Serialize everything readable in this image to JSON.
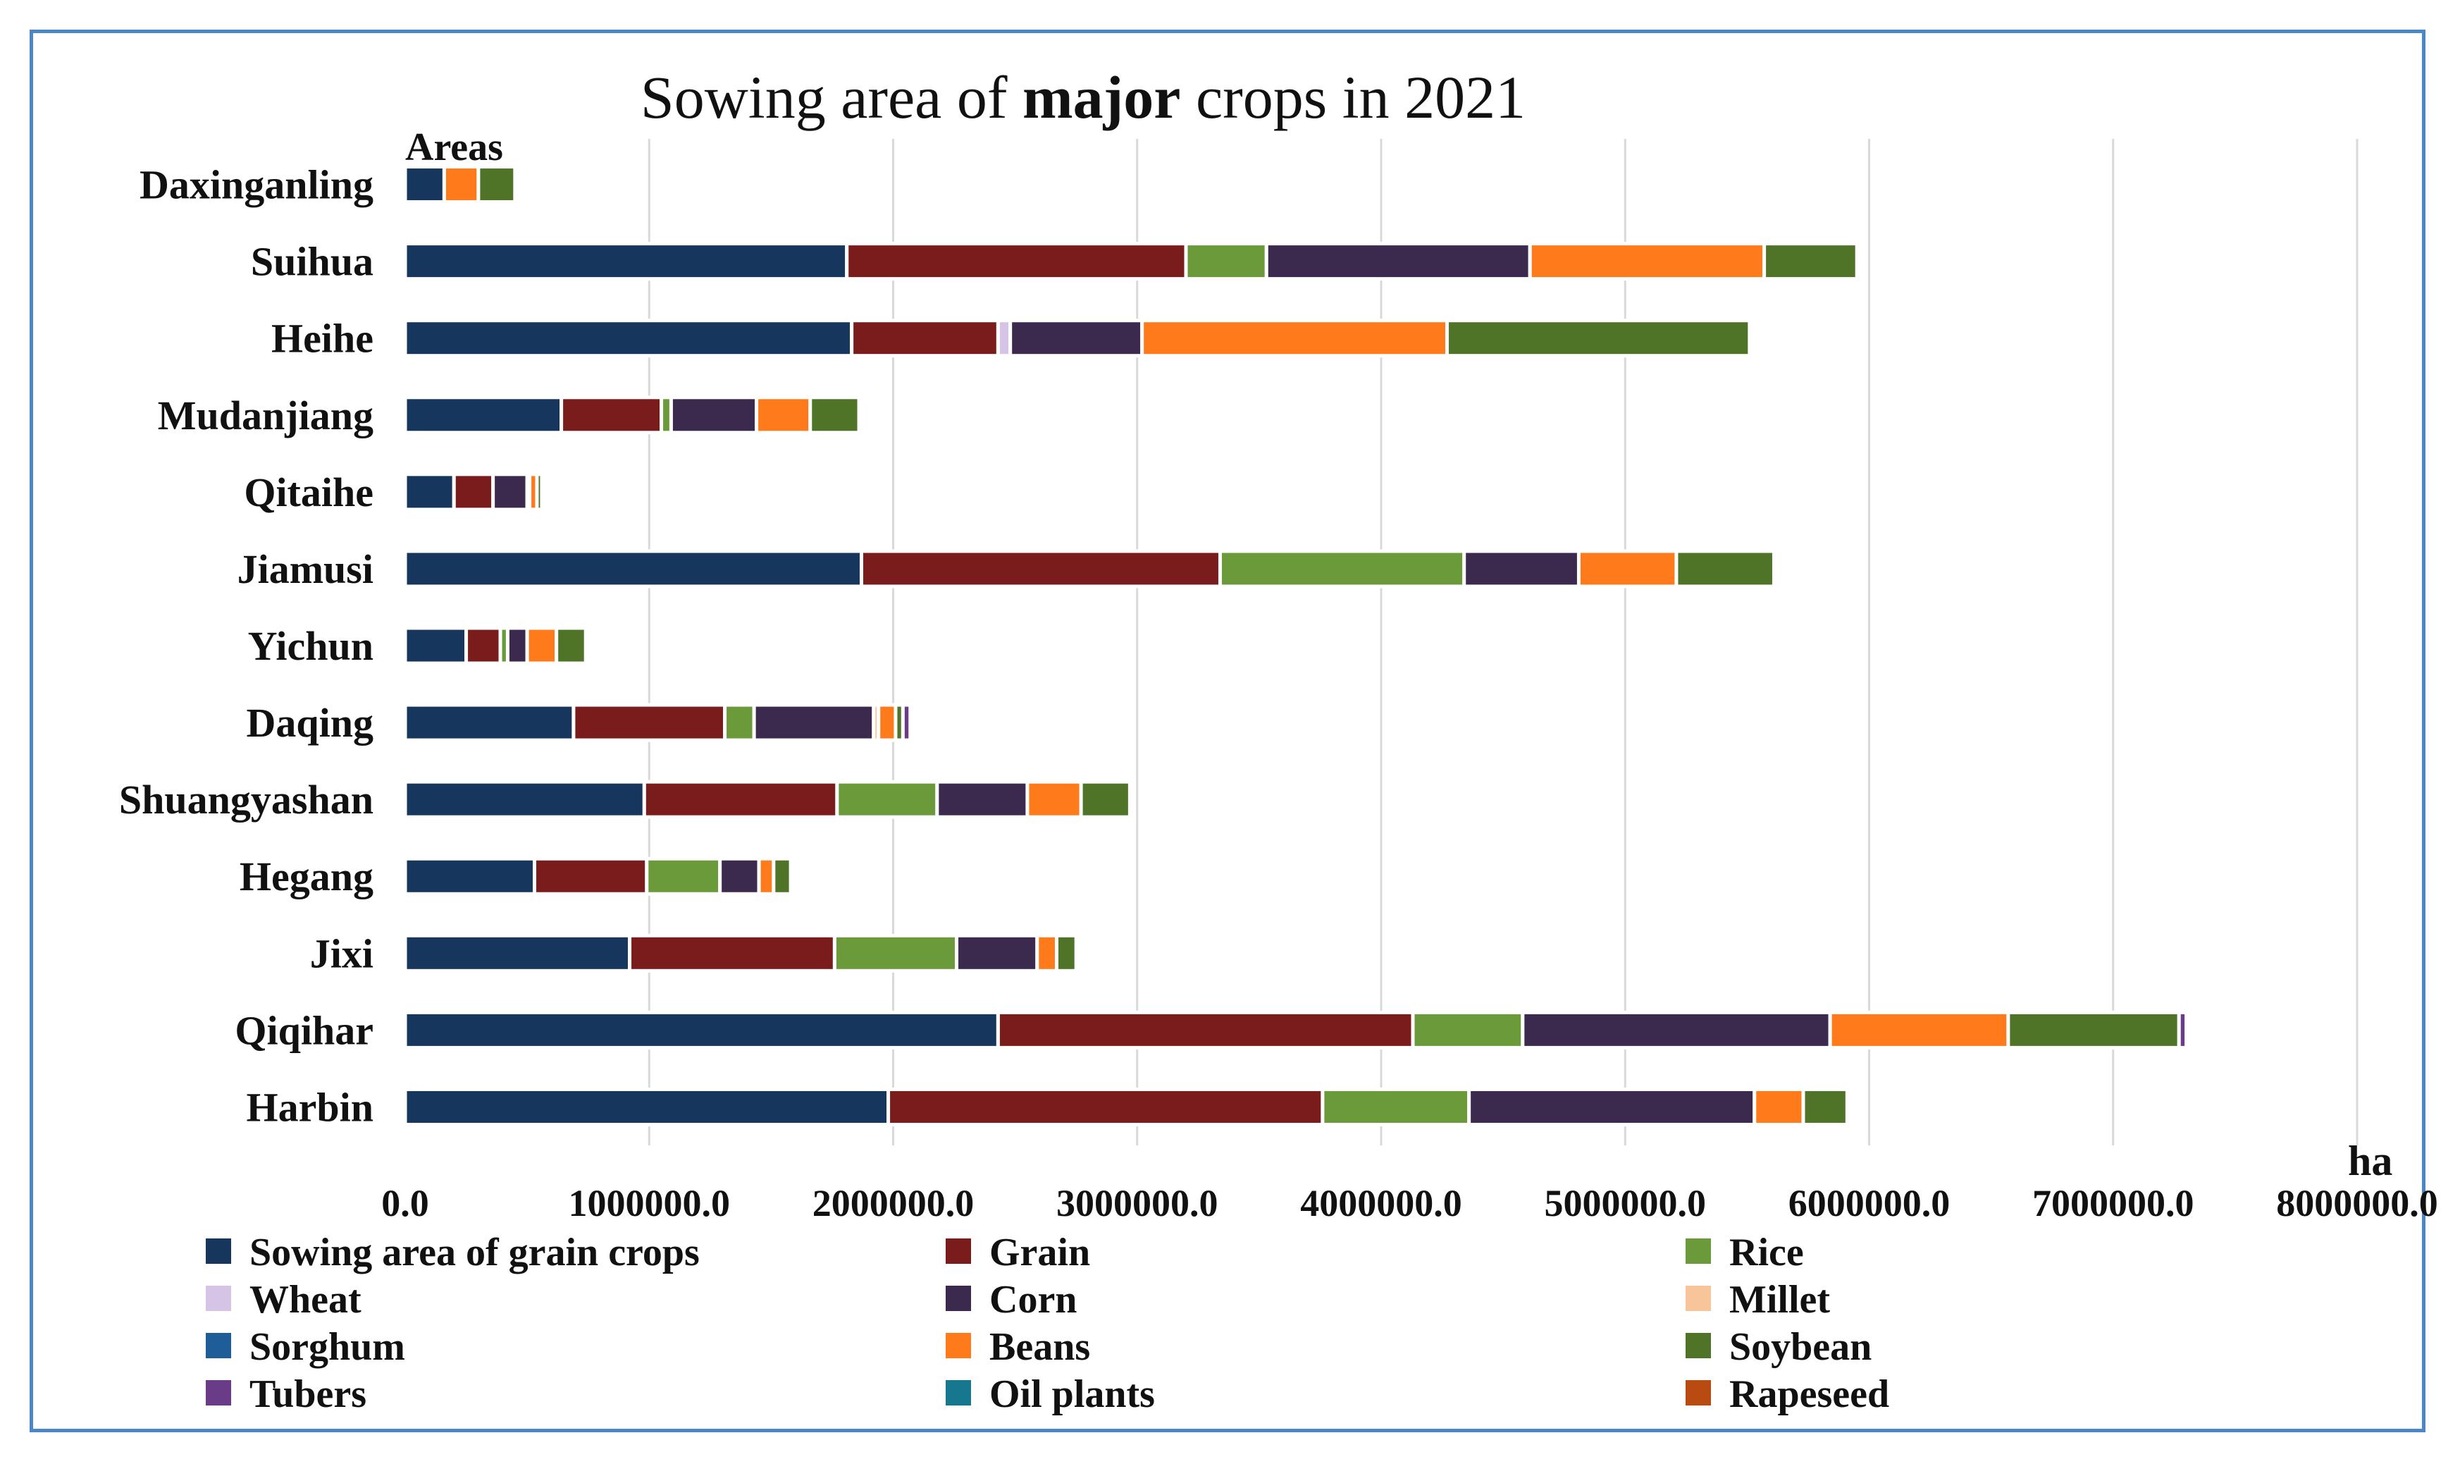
{
  "chart_data": {
    "type": "bar",
    "orientation": "horizontal",
    "stacked": true,
    "title": "Sowing area of major crops in 2021",
    "title_emphasis": "major",
    "ylabel": "Areas",
    "xlabel": "ha",
    "xlim": [
      0,
      8000000
    ],
    "x_ticks": [
      0,
      1000000,
      2000000,
      3000000,
      4000000,
      5000000,
      6000000,
      7000000,
      8000000
    ],
    "x_tick_labels": [
      "0.0",
      "1000000.0",
      "2000000.0",
      "3000000.0",
      "4000000.0",
      "5000000.0",
      "6000000.0",
      "7000000.0",
      "8000000.0"
    ],
    "grid": true,
    "legend_position": "bottom",
    "categories": [
      "Daxinganling",
      "Suihua",
      "Heihe",
      "Mudanjiang",
      "Qitaihe",
      "Jiamusi",
      "Yichun",
      "Daqing",
      "Shuangyashan",
      "Hegang",
      "Jixi",
      "Qiqihar",
      "Harbin"
    ],
    "series": [
      {
        "name": "Sowing area of grain crops",
        "color": "#17365d",
        "values": [
          160000,
          1810000,
          1830000,
          640000,
          200000,
          1870000,
          250000,
          690000,
          980000,
          530000,
          920000,
          2430000,
          1980000
        ]
      },
      {
        "name": "Grain",
        "color": "#7b1c1c",
        "values": [
          0,
          1390000,
          600000,
          410000,
          160000,
          1470000,
          140000,
          620000,
          790000,
          460000,
          840000,
          1700000,
          1780000
        ]
      },
      {
        "name": "Rice",
        "color": "#6a9a3a",
        "values": [
          0,
          330000,
          0,
          40000,
          0,
          1000000,
          30000,
          120000,
          410000,
          300000,
          500000,
          450000,
          600000
        ]
      },
      {
        "name": "Wheat",
        "color": "#d6c4e6",
        "values": [
          0,
          0,
          50000,
          0,
          0,
          0,
          0,
          0,
          0,
          0,
          0,
          0,
          0
        ]
      },
      {
        "name": "Corn",
        "color": "#3b2a4e",
        "values": [
          0,
          1080000,
          540000,
          350000,
          140000,
          470000,
          80000,
          490000,
          370000,
          160000,
          330000,
          1260000,
          1170000
        ]
      },
      {
        "name": "Millet",
        "color": "#f8c49a",
        "values": [
          0,
          0,
          0,
          0,
          10000,
          0,
          0,
          20000,
          0,
          0,
          0,
          0,
          0
        ]
      },
      {
        "name": "Sorghum",
        "color": "#1f5d98",
        "values": [
          0,
          0,
          0,
          0,
          0,
          0,
          0,
          0,
          0,
          0,
          0,
          0,
          0
        ]
      },
      {
        "name": "Beans",
        "color": "#ff7a1a",
        "values": [
          140000,
          960000,
          1250000,
          220000,
          30000,
          400000,
          120000,
          70000,
          220000,
          60000,
          80000,
          730000,
          200000
        ]
      },
      {
        "name": "Soybean",
        "color": "#4f7327",
        "values": [
          150000,
          380000,
          1240000,
          200000,
          20000,
          400000,
          120000,
          30000,
          200000,
          70000,
          80000,
          700000,
          180000
        ]
      },
      {
        "name": "Tubers",
        "color": "#6a3b86",
        "values": [
          0,
          0,
          0,
          0,
          0,
          0,
          0,
          30000,
          0,
          0,
          0,
          30000,
          0
        ]
      },
      {
        "name": "Oil plants",
        "color": "#17778f",
        "values": [
          0,
          0,
          0,
          0,
          0,
          0,
          0,
          0,
          0,
          0,
          0,
          0,
          0
        ]
      },
      {
        "name": "Rapeseed",
        "color": "#b84a12",
        "values": [
          0,
          0,
          0,
          0,
          0,
          0,
          0,
          0,
          0,
          0,
          0,
          0,
          0
        ]
      }
    ]
  }
}
